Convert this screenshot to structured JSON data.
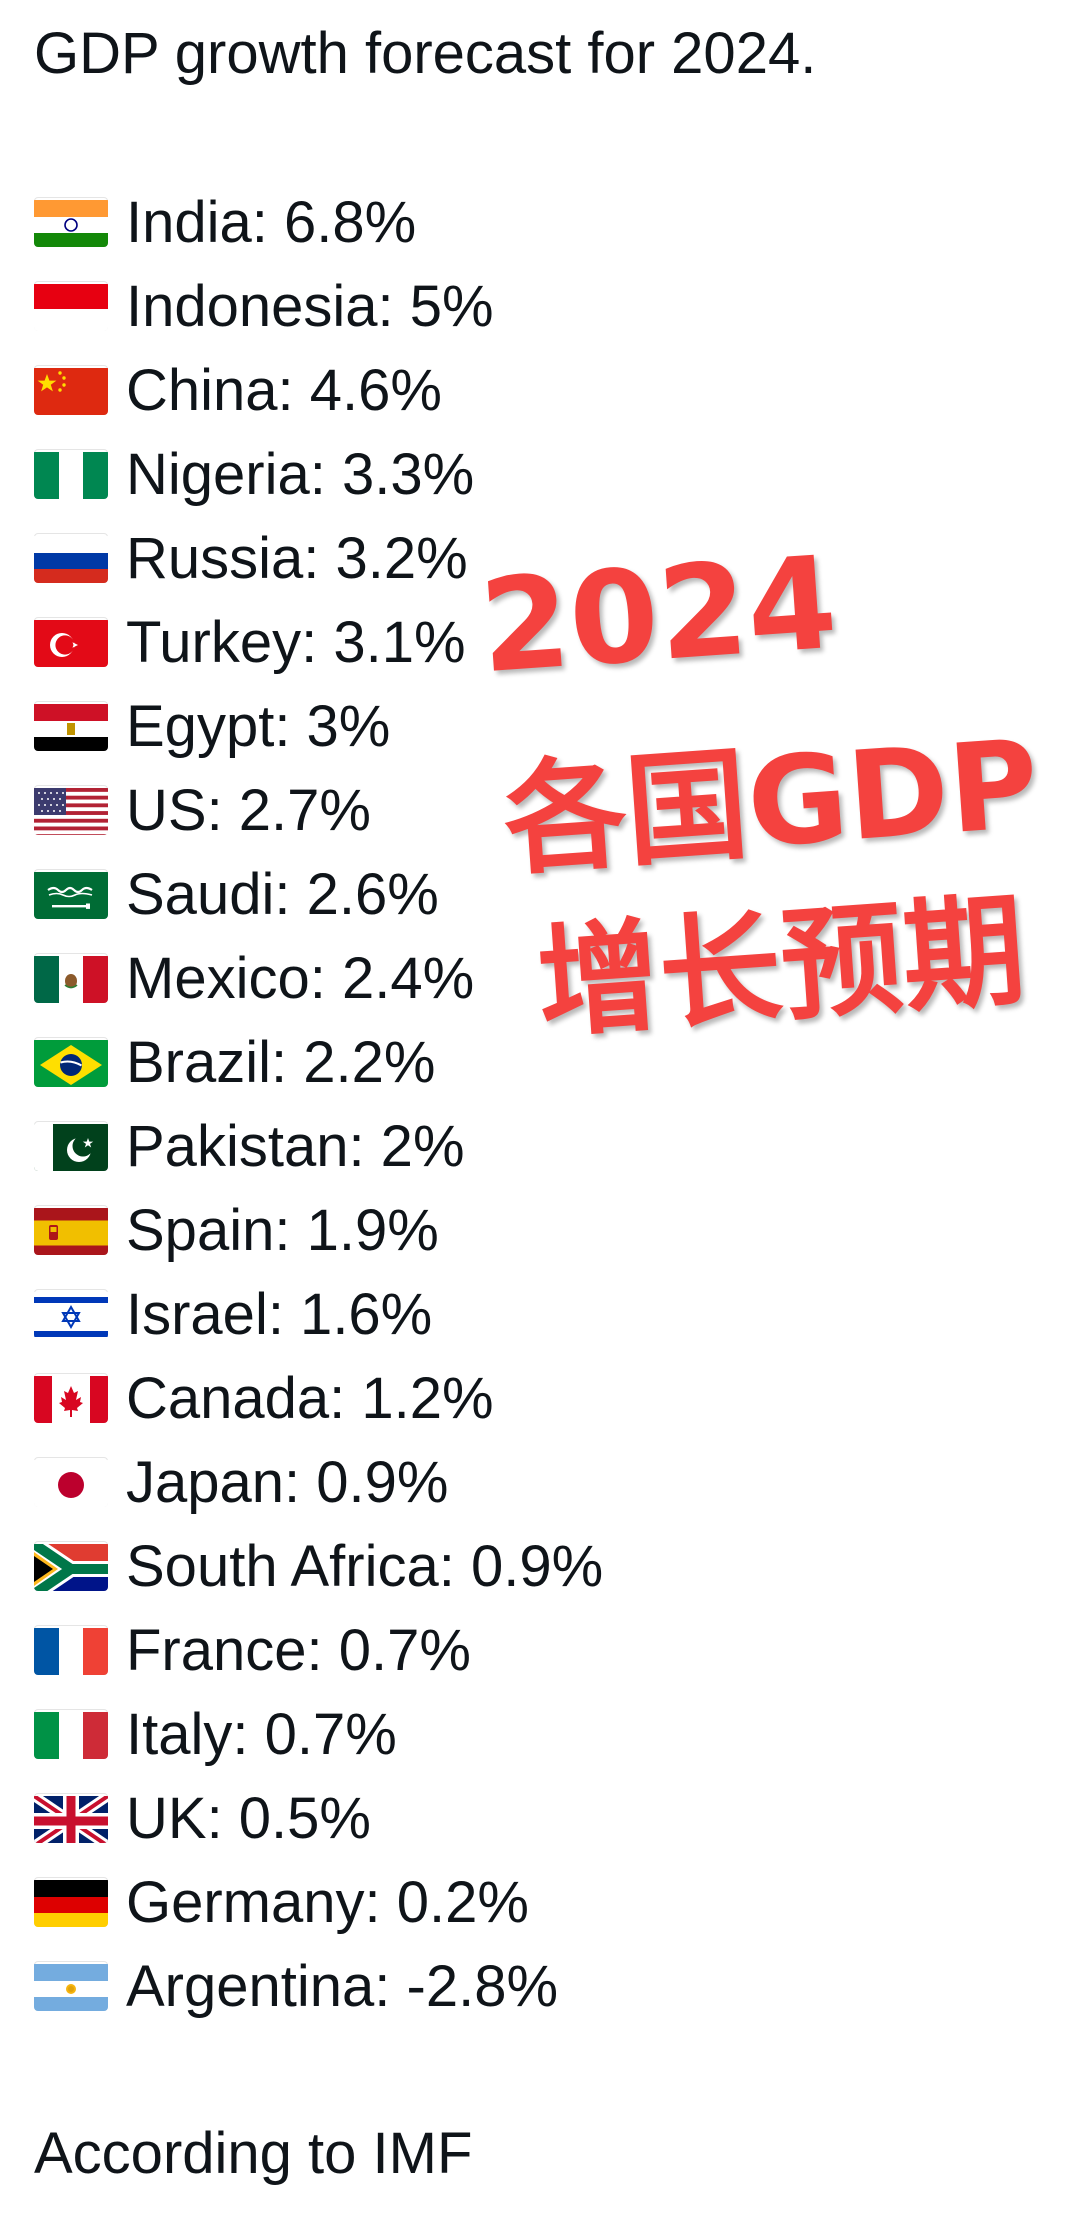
{
  "title": "GDP growth forecast for 2024.",
  "footer": "According to IMF",
  "overlay": {
    "line1": "2024",
    "line2": "各国GDP",
    "line3": "增长预期",
    "color": "#f4423f"
  },
  "countries": [
    {
      "flag": "india-flag-icon",
      "label": "India: 6.8%"
    },
    {
      "flag": "indonesia-flag-icon",
      "label": "Indonesia: 5%"
    },
    {
      "flag": "china-flag-icon",
      "label": "China: 4.6%"
    },
    {
      "flag": "nigeria-flag-icon",
      "label": "Nigeria: 3.3%"
    },
    {
      "flag": "russia-flag-icon",
      "label": "Russia: 3.2%"
    },
    {
      "flag": "turkey-flag-icon",
      "label": "Turkey: 3.1%"
    },
    {
      "flag": "egypt-flag-icon",
      "label": "Egypt: 3%"
    },
    {
      "flag": "us-flag-icon",
      "label": "US: 2.7%"
    },
    {
      "flag": "saudi-flag-icon",
      "label": "Saudi: 2.6%"
    },
    {
      "flag": "mexico-flag-icon",
      "label": "Mexico: 2.4%"
    },
    {
      "flag": "brazil-flag-icon",
      "label": "Brazil: 2.2%"
    },
    {
      "flag": "pakistan-flag-icon",
      "label": "Pakistan: 2%"
    },
    {
      "flag": "spain-flag-icon",
      "label": "Spain: 1.9%"
    },
    {
      "flag": "israel-flag-icon",
      "label": "Israel: 1.6%"
    },
    {
      "flag": "canada-flag-icon",
      "label": "Canada: 1.2%"
    },
    {
      "flag": "japan-flag-icon",
      "label": "Japan: 0.9%"
    },
    {
      "flag": "south-africa-flag-icon",
      "label": "South Africa: 0.9%"
    },
    {
      "flag": "france-flag-icon",
      "label": "France: 0.7%"
    },
    {
      "flag": "italy-flag-icon",
      "label": "Italy: 0.7%"
    },
    {
      "flag": "uk-flag-icon",
      "label": "UK: 0.5%"
    },
    {
      "flag": "germany-flag-icon",
      "label": "Germany: 0.2%"
    },
    {
      "flag": "argentina-flag-icon",
      "label": "Argentina: -2.8%"
    }
  ]
}
